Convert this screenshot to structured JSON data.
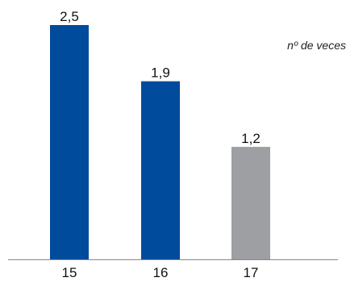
{
  "chart_data": {
    "type": "bar",
    "categories": [
      "15",
      "16",
      "17"
    ],
    "values": [
      2.5,
      1.9,
      1.2
    ],
    "value_labels": [
      "2,5",
      "1,9",
      "1,2"
    ],
    "bar_colors": [
      "#004b9b",
      "#004b9b",
      "#9d9fa2"
    ],
    "unit_note": "nº de veces",
    "title": "",
    "xlabel": "",
    "ylabel": "",
    "ylim": [
      0,
      2.5
    ],
    "grid": false,
    "legend": false
  },
  "colors": {
    "axis": "#888888",
    "text": "#111111"
  }
}
